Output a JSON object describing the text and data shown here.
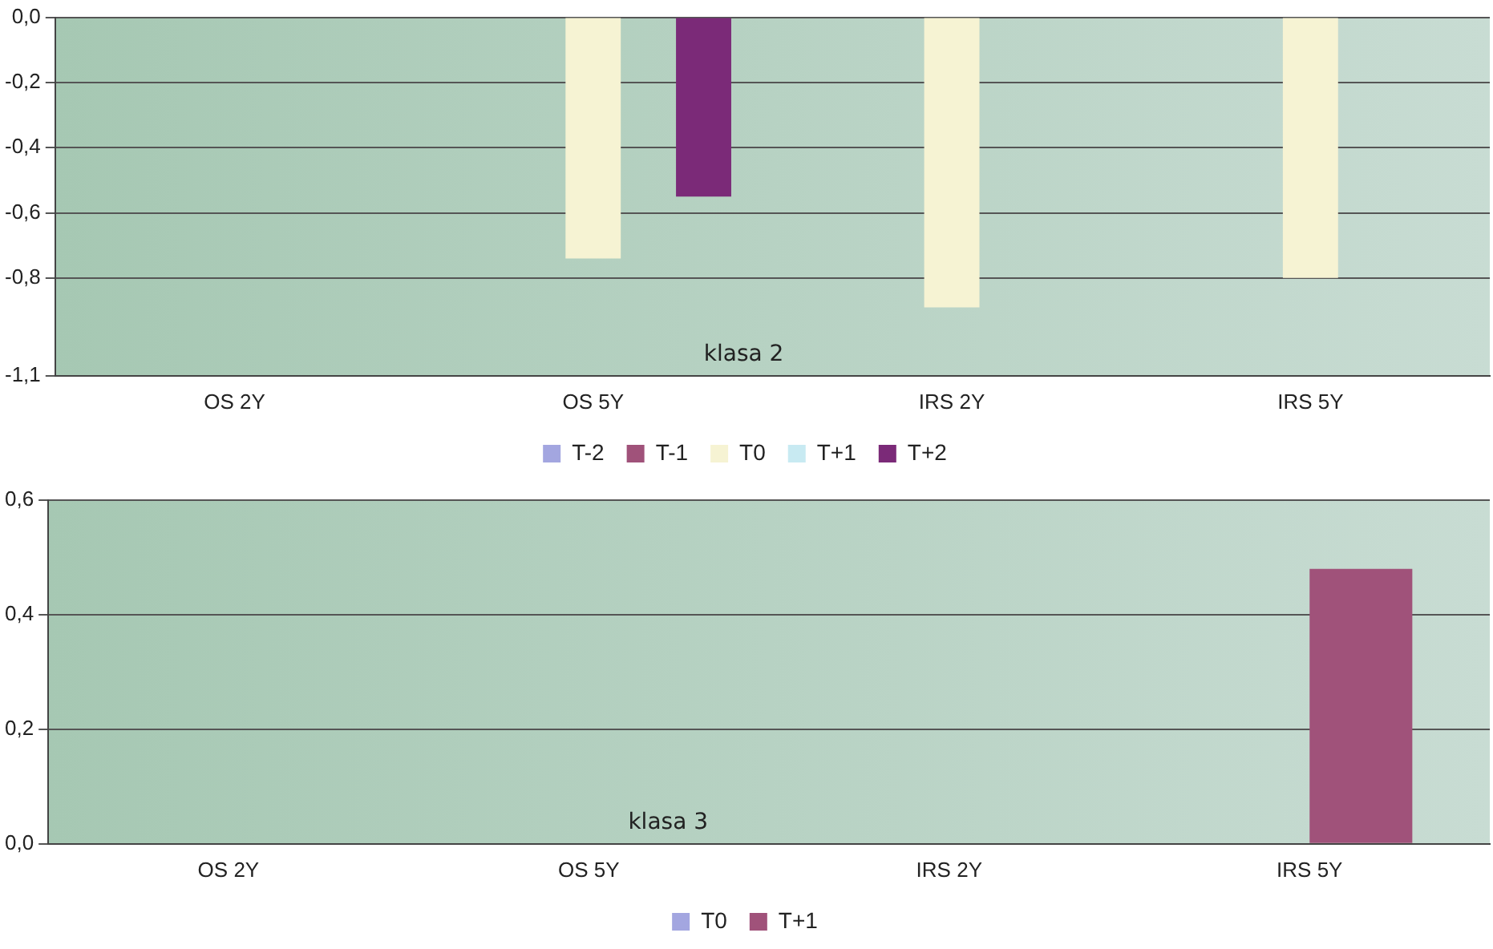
{
  "chart_data": [
    {
      "type": "bar",
      "categories": [
        "OS 2Y",
        "OS 5Y",
        "IRS 2Y",
        "IRS 5Y"
      ],
      "series": [
        {
          "name": "T-2",
          "color": "#a3a6e0",
          "values": [
            null,
            null,
            null,
            null
          ]
        },
        {
          "name": "T-1",
          "color": "#a0527a",
          "values": [
            null,
            null,
            null,
            null
          ]
        },
        {
          "name": "T0",
          "color": "#f6f3d3",
          "values": [
            null,
            -0.74,
            -0.89,
            -0.8
          ]
        },
        {
          "name": "T+1",
          "color": "#c8eaf2",
          "values": [
            null,
            null,
            null,
            null
          ]
        },
        {
          "name": "T+2",
          "color": "#7b2a78",
          "values": [
            null,
            -0.55,
            null,
            null
          ]
        }
      ],
      "ylim": [
        -1.1,
        0
      ],
      "yticks": [
        {
          "value": 0,
          "label": "0,0"
        },
        {
          "value": -0.2,
          "label": "-0,2"
        },
        {
          "value": -0.4,
          "label": "-0,4"
        },
        {
          "value": -0.6,
          "label": "-0,6"
        },
        {
          "value": -0.8,
          "label": "-0,8"
        },
        {
          "value": -1.1,
          "label": "-1,1"
        }
      ],
      "grid": "y",
      "legend": "bottom",
      "annotations": [
        "klasa 2"
      ]
    },
    {
      "type": "bar",
      "categories": [
        "OS 2Y",
        "OS 5Y",
        "IRS 2Y",
        "IRS 5Y"
      ],
      "series": [
        {
          "name": "T0",
          "color": "#a3a6e0",
          "values": [
            null,
            null,
            null,
            null
          ]
        },
        {
          "name": "T+1",
          "color": "#a0527a",
          "values": [
            null,
            null,
            null,
            0.48
          ]
        }
      ],
      "ylim": [
        0,
        0.6
      ],
      "yticks": [
        {
          "value": 0,
          "label": "0,0"
        },
        {
          "value": 0.2,
          "label": "0,2"
        },
        {
          "value": 0.4,
          "label": "0,4"
        },
        {
          "value": 0.6,
          "label": "0,6"
        }
      ],
      "grid": "y",
      "legend": "bottom",
      "annotations": [
        "klasa 3"
      ]
    }
  ]
}
